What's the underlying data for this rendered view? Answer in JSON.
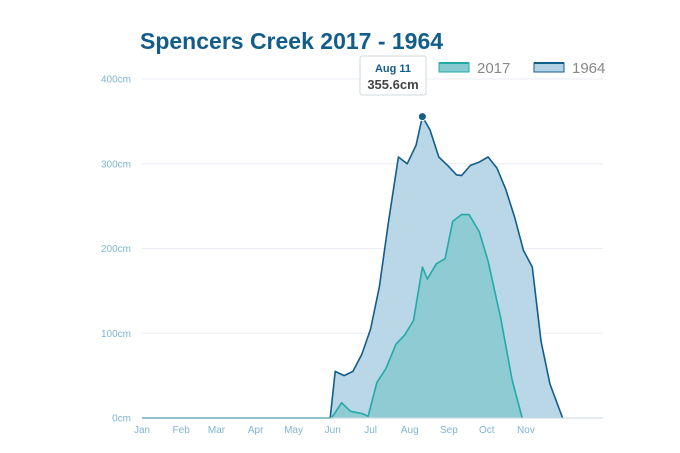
{
  "chart_data": {
    "type": "area",
    "title": "Spencers Creek 2017 - 1964",
    "xlabel": "",
    "ylabel": "",
    "x_ticks": [
      "Jan",
      "Feb",
      "Mar",
      "Apr",
      "May",
      "Jun",
      "Jul",
      "Aug",
      "Sep",
      "Oct",
      "Nov"
    ],
    "y_ticks": [
      "0cm",
      "100cm",
      "200cm",
      "300cm",
      "400cm"
    ],
    "ylim": [
      0,
      400
    ],
    "grid": true,
    "legend_position": "top-right",
    "series": [
      {
        "name": "2017",
        "color": "#22aaa8",
        "fill": "#86c9cf",
        "points": [
          [
            "01-01",
            0
          ],
          [
            "05-01",
            0
          ],
          [
            "05-31",
            0
          ],
          [
            "06-08",
            18
          ],
          [
            "06-15",
            8
          ],
          [
            "06-25",
            5
          ],
          [
            "06-29",
            2
          ],
          [
            "07-06",
            42
          ],
          [
            "07-13",
            58
          ],
          [
            "07-21",
            87
          ],
          [
            "07-28",
            98
          ],
          [
            "08-04",
            115
          ],
          [
            "08-11",
            178
          ],
          [
            "08-15",
            164
          ],
          [
            "08-22",
            182
          ],
          [
            "08-29",
            188
          ],
          [
            "09-04",
            232
          ],
          [
            "09-11",
            240
          ],
          [
            "09-17",
            240
          ],
          [
            "09-25",
            220
          ],
          [
            "10-02",
            185
          ],
          [
            "10-12",
            118
          ],
          [
            "10-21",
            45
          ],
          [
            "10-29",
            0
          ]
        ]
      },
      {
        "name": "1964",
        "color": "#135d8a",
        "fill": "#b3d3e5",
        "points": [
          [
            "01-01",
            0
          ],
          [
            "05-01",
            0
          ],
          [
            "05-30",
            0
          ],
          [
            "06-03",
            55
          ],
          [
            "06-10",
            50
          ],
          [
            "06-17",
            55
          ],
          [
            "06-24",
            75
          ],
          [
            "07-01",
            105
          ],
          [
            "07-08",
            155
          ],
          [
            "07-15",
            230
          ],
          [
            "07-23",
            308
          ],
          [
            "07-30",
            300
          ],
          [
            "08-06",
            322
          ],
          [
            "08-11",
            355.6
          ],
          [
            "08-17",
            340
          ],
          [
            "08-24",
            308
          ],
          [
            "08-31",
            298
          ],
          [
            "09-07",
            287
          ],
          [
            "09-11",
            286
          ],
          [
            "09-18",
            298
          ],
          [
            "09-25",
            302
          ],
          [
            "10-02",
            308
          ],
          [
            "10-09",
            295
          ],
          [
            "10-16",
            270
          ],
          [
            "10-23",
            237
          ],
          [
            "10-30",
            198
          ],
          [
            "11-06",
            178
          ],
          [
            "11-13",
            90
          ],
          [
            "11-20",
            40
          ],
          [
            "11-30",
            0
          ]
        ]
      }
    ],
    "tooltip": {
      "date": "Aug 11",
      "value": "355.6cm",
      "series": "1964",
      "x": "08-11",
      "y": 355.6
    }
  },
  "colors": {
    "title": "#135d8a",
    "axis_label": "#7fb4d4",
    "grid": "#e8eef3",
    "legend_text": "#888888"
  }
}
